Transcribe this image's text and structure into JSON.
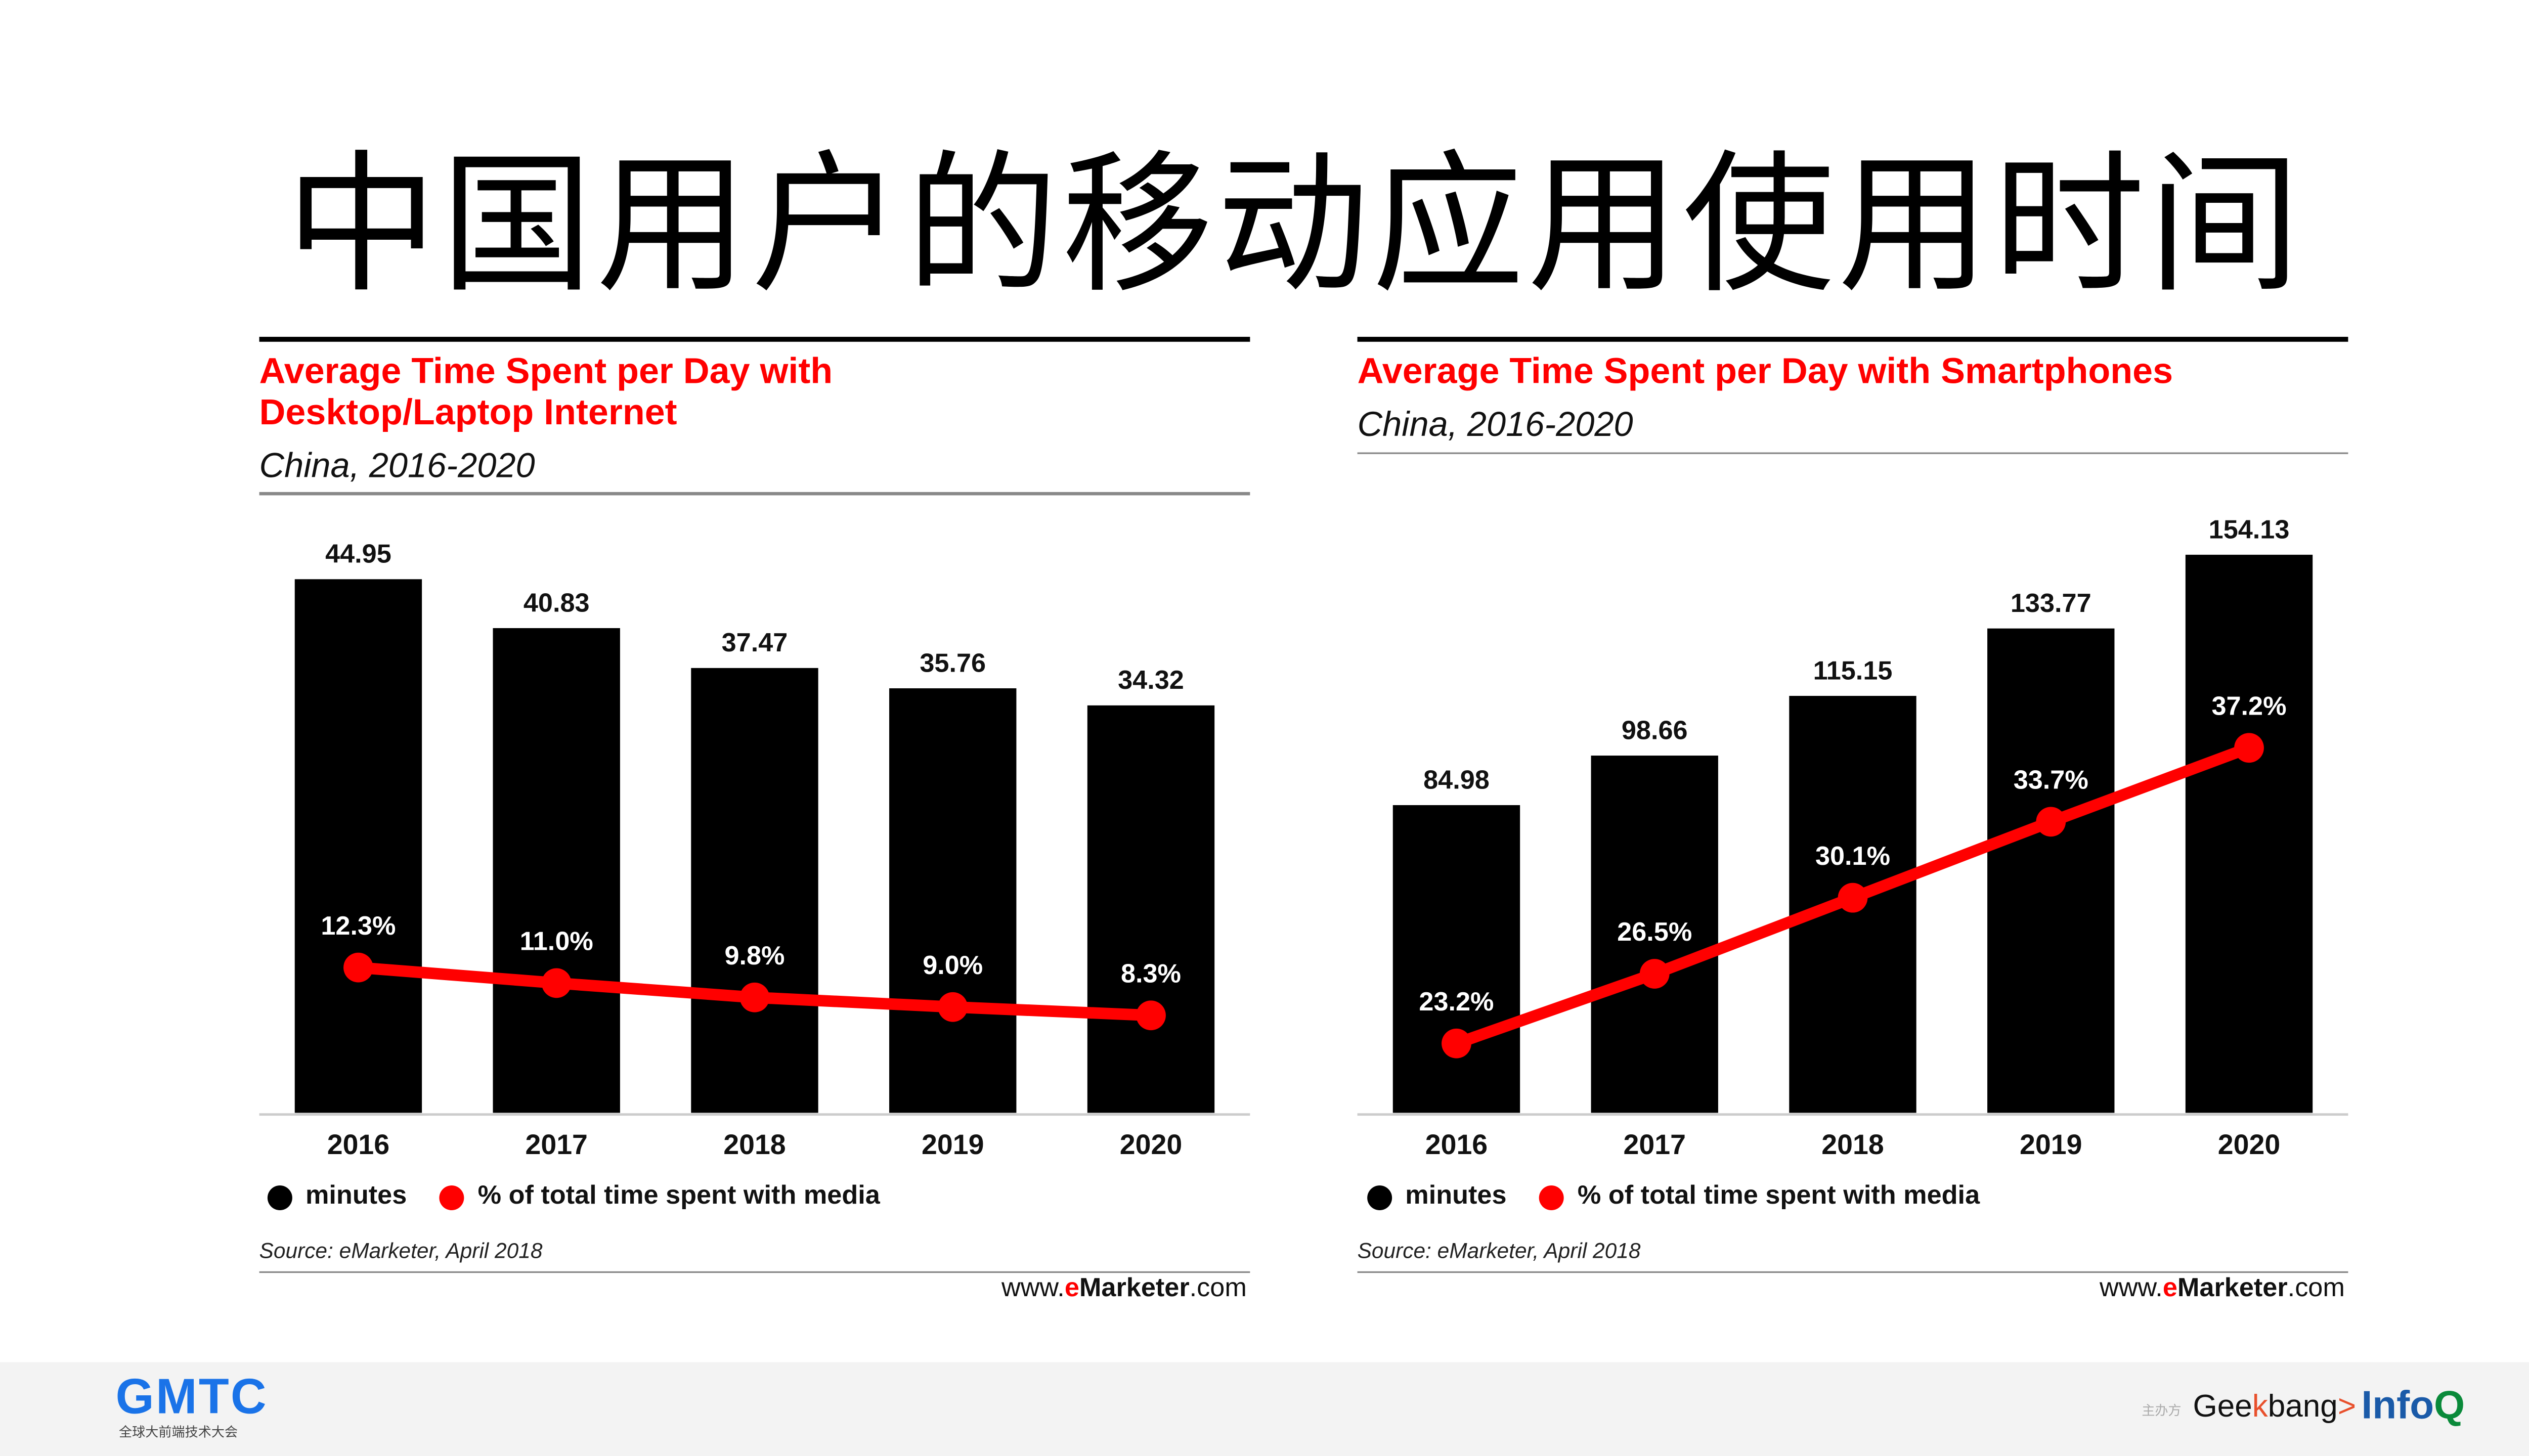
{
  "page_title": "中国用户的移动应用使用时间",
  "chart_data": [
    {
      "type": "bar",
      "title": "Average Time Spent per Day with Desktop/Laptop Internet",
      "title_lines": [
        "Average Time Spent per Day with",
        "Desktop/Laptop Internet"
      ],
      "subtitle": "China, 2016-2020",
      "categories": [
        "2016",
        "2017",
        "2018",
        "2019",
        "2020"
      ],
      "series": [
        {
          "name": "minutes",
          "type": "bar",
          "values": [
            44.95,
            40.83,
            37.47,
            35.76,
            34.32
          ],
          "labels": [
            "44.95",
            "40.83",
            "37.47",
            "35.76",
            "34.32"
          ],
          "color": "#000000"
        },
        {
          "name": "% of total time spent with media",
          "type": "line",
          "values": [
            12.3,
            11.0,
            9.8,
            9.0,
            8.3
          ],
          "labels": [
            "12.3%",
            "11.0%",
            "9.8%",
            "9.0%",
            "8.3%"
          ],
          "color": "#ff0000"
        }
      ],
      "legend": [
        "minutes",
        "% of total time spent with media"
      ],
      "legend_position": "bottom-left",
      "grid": false,
      "source": "Source: eMarketer, April 2018",
      "brand": {
        "prefix": "www.",
        "e": "e",
        "name": "Marketer",
        "suffix": ".com"
      }
    },
    {
      "type": "bar",
      "title": "Average Time Spent per Day with Smartphones",
      "title_lines": [
        "Average Time Spent per Day with Smartphones"
      ],
      "subtitle": "China, 2016-2020",
      "categories": [
        "2016",
        "2017",
        "2018",
        "2019",
        "2020"
      ],
      "series": [
        {
          "name": "minutes",
          "type": "bar",
          "values": [
            84.98,
            98.66,
            115.15,
            133.77,
            154.13
          ],
          "labels": [
            "84.98",
            "98.66",
            "115.15",
            "133.77",
            "154.13"
          ],
          "color": "#000000"
        },
        {
          "name": "% of total time spent with media",
          "type": "line",
          "values": [
            23.2,
            26.5,
            30.1,
            33.7,
            37.2
          ],
          "labels": [
            "23.2%",
            "26.5%",
            "30.1%",
            "33.7%",
            "37.2%"
          ],
          "color": "#ff0000"
        }
      ],
      "legend": [
        "minutes",
        "% of total time spent with media"
      ],
      "legend_position": "bottom-left",
      "grid": false,
      "source": "Source: eMarketer, April 2018",
      "brand": {
        "prefix": "www.",
        "e": "e",
        "name": "Marketer",
        "suffix": ".com"
      }
    }
  ],
  "footer": {
    "gmtc": "GMTC",
    "gmtc_sub": "全球大前端技术大会",
    "sponsor": "主办方",
    "geekbang": {
      "a": "Gee",
      "k": "k",
      "b": "bang",
      "arrow": ">"
    },
    "infoq": {
      "a": "Info",
      "q": "Q"
    }
  }
}
